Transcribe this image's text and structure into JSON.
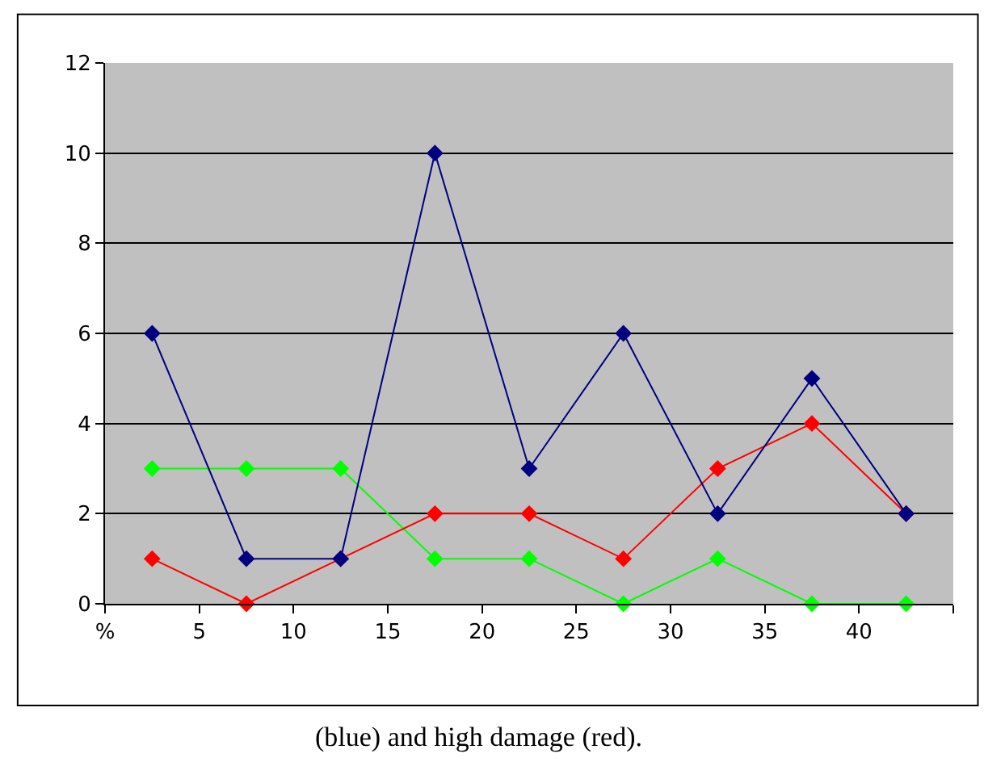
{
  "chart_data": {
    "type": "line",
    "x": [
      2.5,
      7.5,
      12.5,
      17.5,
      22.5,
      27.5,
      32.5,
      37.5,
      42.5
    ],
    "series": [
      {
        "color": "#000080",
        "values": [
          6,
          1,
          1,
          10,
          3,
          6,
          2,
          5,
          2
        ]
      },
      {
        "color": "#ff0000",
        "values": [
          1,
          0,
          1,
          2,
          2,
          1,
          3,
          4,
          2
        ]
      },
      {
        "color": "#00ff00",
        "values": [
          3,
          3,
          3,
          1,
          1,
          0,
          1,
          0,
          0
        ]
      }
    ],
    "xlim": [
      0,
      45
    ],
    "xticks": [
      {
        "value": 0,
        "label": "%"
      },
      5,
      10,
      15,
      20,
      25,
      30,
      35,
      40,
      {
        "value": 45,
        "label": null
      }
    ],
    "ylim": [
      0,
      12
    ],
    "yticks": [
      0,
      2,
      4,
      6,
      8,
      10,
      12
    ],
    "grid": "y",
    "legend": false,
    "marker": "diamond",
    "line_style": "solid",
    "annotations": [
      "(blue) and high damage (red)."
    ]
  }
}
